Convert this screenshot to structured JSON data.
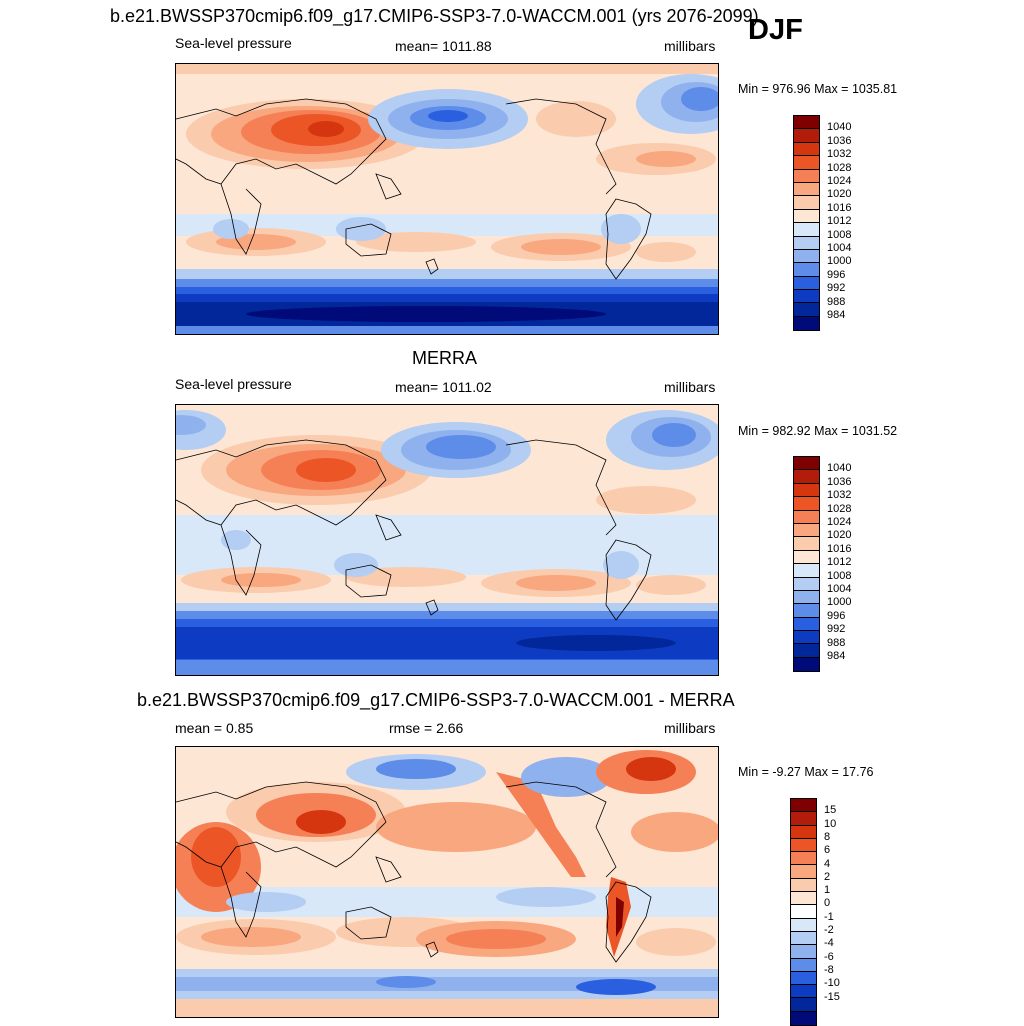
{
  "season": "DJF",
  "colors": {
    "pressure_scale": [
      "#7f0000",
      "#b11d0a",
      "#d6360f",
      "#ec5627",
      "#f68055",
      "#f9a77f",
      "#fbcbad",
      "#fde6d4",
      "#d8e8f8",
      "#b3cdf3",
      "#8fb2ee",
      "#5d8ce9",
      "#2a5fe0",
      "#0d3bc2",
      "#02279a",
      "#000a78"
    ],
    "diff_scale": [
      "#7f0000",
      "#b11d0a",
      "#d6360f",
      "#ec5627",
      "#f68055",
      "#f9a77f",
      "#fbcbad",
      "#fde6d4",
      "#ffffff",
      "#d8e8f8",
      "#b3cdf3",
      "#8fb2ee",
      "#5d8ce9",
      "#2a5fe0",
      "#0d3bc2",
      "#02279a",
      "#000a78"
    ]
  },
  "panels": [
    {
      "title": "b.e21.BWSSP370cmip6.f09_g17.CMIP6-SSP3-7.0-WACCM.001 (yrs 2076-2099)",
      "left_label": "Sea-level pressure",
      "center_label": "mean= 1011.88",
      "right_label": "millibars",
      "minmax": "Min = 976.96 Max = 1035.81",
      "colorbar_labels": [
        "1040",
        "1036",
        "1032",
        "1028",
        "1024",
        "1020",
        "1016",
        "1012",
        "1008",
        "1004",
        "1000",
        "996",
        "992",
        "988",
        "984"
      ]
    },
    {
      "title": "MERRA",
      "left_label": "Sea-level pressure",
      "center_label": "mean= 1011.02",
      "right_label": "millibars",
      "minmax": "Min = 982.92 Max = 1031.52",
      "colorbar_labels": [
        "1040",
        "1036",
        "1032",
        "1028",
        "1024",
        "1020",
        "1016",
        "1012",
        "1008",
        "1004",
        "1000",
        "996",
        "992",
        "988",
        "984"
      ]
    },
    {
      "title": "b.e21.BWSSP370cmip6.f09_g17.CMIP6-SSP3-7.0-WACCM.001 - MERRA",
      "left_label": "mean =   0.85",
      "center_label": "rmse =   2.66",
      "right_label": "millibars",
      "minmax": "Min =  -9.27 Max =  17.76",
      "colorbar_labels": [
        "15",
        "10",
        "8",
        "6",
        "4",
        "2",
        "1",
        "0",
        "-1",
        "-2",
        "-4",
        "-6",
        "-8",
        "-10",
        "-15"
      ]
    }
  ],
  "chart_data": [
    {
      "type": "heatmap",
      "title": "b.e21.BWSSP370cmip6.f09_g17.CMIP6-SSP3-7.0-WACCM.001 (yrs 2076-2099)",
      "variable": "Sea-level pressure",
      "units": "millibars",
      "mean": 1011.88,
      "min": 976.96,
      "max": 1035.81,
      "levels": [
        984,
        988,
        992,
        996,
        1000,
        1004,
        1008,
        1012,
        1016,
        1020,
        1024,
        1028,
        1032,
        1036,
        1040
      ]
    },
    {
      "type": "heatmap",
      "title": "MERRA",
      "variable": "Sea-level pressure",
      "units": "millibars",
      "mean": 1011.02,
      "min": 982.92,
      "max": 1031.52,
      "levels": [
        984,
        988,
        992,
        996,
        1000,
        1004,
        1008,
        1012,
        1016,
        1020,
        1024,
        1028,
        1032,
        1036,
        1040
      ]
    },
    {
      "type": "heatmap",
      "title": "b.e21.BWSSP370cmip6.f09_g17.CMIP6-SSP3-7.0-WACCM.001 - MERRA",
      "units": "millibars",
      "mean": 0.85,
      "rmse": 2.66,
      "min": -9.27,
      "max": 17.76,
      "levels": [
        -15,
        -10,
        -8,
        -6,
        -4,
        -2,
        -1,
        0,
        1,
        2,
        4,
        6,
        8,
        10,
        15
      ]
    }
  ]
}
